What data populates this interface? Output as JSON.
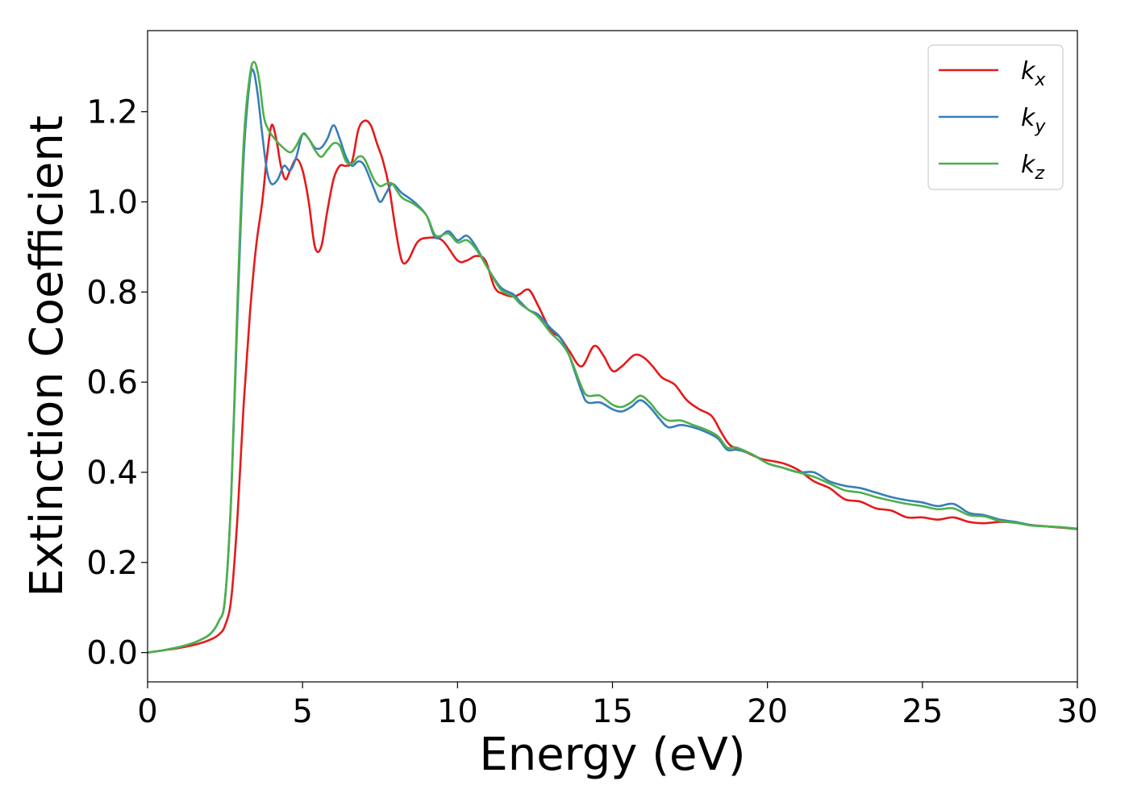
{
  "chart_data": {
    "type": "line",
    "title": "",
    "xlabel": "Energy (eV)",
    "ylabel": "Extinction Coefficient",
    "xlim": [
      0,
      30
    ],
    "ylim": [
      -0.065,
      1.38
    ],
    "xticks": [
      0,
      5,
      10,
      15,
      20,
      25,
      30
    ],
    "xtick_labels": [
      "0",
      "5",
      "10",
      "15",
      "20",
      "25",
      "30"
    ],
    "yticks": [
      0.0,
      0.2,
      0.4,
      0.6,
      0.8,
      1.0,
      1.2
    ],
    "ytick_labels": [
      "0.0",
      "0.2",
      "0.4",
      "0.6",
      "0.8",
      "1.0",
      "1.2"
    ],
    "grid": false,
    "legend_position": "top-right",
    "series": [
      {
        "name": "k",
        "subscript": "x",
        "color": "#e41a1c",
        "points": [
          [
            0,
            0.0
          ],
          [
            0.5,
            0.005
          ],
          [
            1.0,
            0.01
          ],
          [
            1.5,
            0.017
          ],
          [
            2.0,
            0.028
          ],
          [
            2.3,
            0.04
          ],
          [
            2.5,
            0.06
          ],
          [
            2.7,
            0.12
          ],
          [
            2.9,
            0.3
          ],
          [
            3.1,
            0.55
          ],
          [
            3.3,
            0.75
          ],
          [
            3.5,
            0.9
          ],
          [
            3.7,
            1.0
          ],
          [
            3.85,
            1.1
          ],
          [
            4.0,
            1.17
          ],
          [
            4.15,
            1.14
          ],
          [
            4.3,
            1.08
          ],
          [
            4.45,
            1.05
          ],
          [
            4.6,
            1.07
          ],
          [
            4.8,
            1.095
          ],
          [
            5.0,
            1.07
          ],
          [
            5.2,
            1.0
          ],
          [
            5.4,
            0.9
          ],
          [
            5.6,
            0.9
          ],
          [
            5.8,
            0.98
          ],
          [
            6.0,
            1.05
          ],
          [
            6.2,
            1.08
          ],
          [
            6.4,
            1.08
          ],
          [
            6.6,
            1.09
          ],
          [
            6.8,
            1.16
          ],
          [
            7.0,
            1.18
          ],
          [
            7.2,
            1.17
          ],
          [
            7.4,
            1.13
          ],
          [
            7.6,
            1.09
          ],
          [
            7.8,
            1.03
          ],
          [
            8.0,
            0.94
          ],
          [
            8.2,
            0.87
          ],
          [
            8.4,
            0.87
          ],
          [
            8.7,
            0.91
          ],
          [
            9.0,
            0.92
          ],
          [
            9.5,
            0.915
          ],
          [
            10.0,
            0.87
          ],
          [
            10.3,
            0.87
          ],
          [
            10.6,
            0.88
          ],
          [
            10.9,
            0.87
          ],
          [
            11.2,
            0.81
          ],
          [
            11.5,
            0.795
          ],
          [
            11.8,
            0.79
          ],
          [
            12.0,
            0.795
          ],
          [
            12.3,
            0.805
          ],
          [
            12.6,
            0.77
          ],
          [
            13.0,
            0.715
          ],
          [
            13.3,
            0.7
          ],
          [
            13.6,
            0.67
          ],
          [
            14.0,
            0.635
          ],
          [
            14.4,
            0.68
          ],
          [
            14.7,
            0.66
          ],
          [
            15.0,
            0.625
          ],
          [
            15.3,
            0.635
          ],
          [
            15.7,
            0.66
          ],
          [
            16.0,
            0.655
          ],
          [
            16.3,
            0.635
          ],
          [
            16.6,
            0.61
          ],
          [
            17.0,
            0.595
          ],
          [
            17.4,
            0.56
          ],
          [
            17.8,
            0.54
          ],
          [
            18.2,
            0.525
          ],
          [
            18.5,
            0.49
          ],
          [
            18.8,
            0.46
          ],
          [
            19.3,
            0.445
          ],
          [
            19.8,
            0.43
          ],
          [
            20.5,
            0.42
          ],
          [
            21.0,
            0.405
          ],
          [
            21.5,
            0.38
          ],
          [
            22.0,
            0.365
          ],
          [
            22.5,
            0.34
          ],
          [
            23.0,
            0.335
          ],
          [
            23.5,
            0.32
          ],
          [
            24.0,
            0.315
          ],
          [
            24.5,
            0.3
          ],
          [
            25.0,
            0.3
          ],
          [
            25.5,
            0.295
          ],
          [
            26.0,
            0.3
          ],
          [
            26.5,
            0.29
          ],
          [
            27.0,
            0.287
          ],
          [
            27.5,
            0.29
          ],
          [
            28.0,
            0.288
          ],
          [
            28.5,
            0.283
          ],
          [
            29.0,
            0.28
          ],
          [
            29.5,
            0.277
          ],
          [
            30.0,
            0.274
          ]
        ]
      },
      {
        "name": "k",
        "subscript": "y",
        "color": "#377eb8",
        "points": [
          [
            0,
            0.0
          ],
          [
            0.5,
            0.005
          ],
          [
            1.0,
            0.012
          ],
          [
            1.5,
            0.022
          ],
          [
            2.0,
            0.04
          ],
          [
            2.3,
            0.07
          ],
          [
            2.5,
            0.12
          ],
          [
            2.7,
            0.35
          ],
          [
            2.9,
            0.75
          ],
          [
            3.1,
            1.1
          ],
          [
            3.3,
            1.27
          ],
          [
            3.42,
            1.29
          ],
          [
            3.55,
            1.24
          ],
          [
            3.7,
            1.15
          ],
          [
            3.85,
            1.07
          ],
          [
            4.0,
            1.04
          ],
          [
            4.2,
            1.05
          ],
          [
            4.4,
            1.08
          ],
          [
            4.6,
            1.07
          ],
          [
            4.8,
            1.1
          ],
          [
            5.0,
            1.15
          ],
          [
            5.2,
            1.14
          ],
          [
            5.4,
            1.12
          ],
          [
            5.6,
            1.12
          ],
          [
            5.8,
            1.14
          ],
          [
            6.0,
            1.17
          ],
          [
            6.2,
            1.14
          ],
          [
            6.4,
            1.1
          ],
          [
            6.6,
            1.08
          ],
          [
            6.8,
            1.09
          ],
          [
            7.0,
            1.08
          ],
          [
            7.3,
            1.03
          ],
          [
            7.5,
            1.0
          ],
          [
            7.7,
            1.02
          ],
          [
            7.9,
            1.04
          ],
          [
            8.2,
            1.02
          ],
          [
            8.6,
            1.0
          ],
          [
            9.0,
            0.97
          ],
          [
            9.3,
            0.92
          ],
          [
            9.7,
            0.935
          ],
          [
            10.0,
            0.915
          ],
          [
            10.3,
            0.925
          ],
          [
            10.6,
            0.9
          ],
          [
            11.0,
            0.85
          ],
          [
            11.4,
            0.81
          ],
          [
            11.8,
            0.795
          ],
          [
            12.0,
            0.78
          ],
          [
            12.3,
            0.76
          ],
          [
            12.6,
            0.75
          ],
          [
            13.0,
            0.72
          ],
          [
            13.3,
            0.7
          ],
          [
            13.6,
            0.66
          ],
          [
            14.0,
            0.58
          ],
          [
            14.2,
            0.555
          ],
          [
            14.6,
            0.555
          ],
          [
            15.0,
            0.54
          ],
          [
            15.3,
            0.535
          ],
          [
            15.6,
            0.545
          ],
          [
            15.9,
            0.56
          ],
          [
            16.2,
            0.545
          ],
          [
            16.5,
            0.52
          ],
          [
            16.8,
            0.5
          ],
          [
            17.2,
            0.505
          ],
          [
            17.6,
            0.5
          ],
          [
            18.0,
            0.49
          ],
          [
            18.4,
            0.475
          ],
          [
            18.7,
            0.45
          ],
          [
            19.0,
            0.45
          ],
          [
            19.5,
            0.44
          ],
          [
            20.0,
            0.42
          ],
          [
            20.5,
            0.41
          ],
          [
            21.0,
            0.4
          ],
          [
            21.5,
            0.4
          ],
          [
            22.0,
            0.38
          ],
          [
            22.5,
            0.37
          ],
          [
            23.0,
            0.365
          ],
          [
            23.5,
            0.355
          ],
          [
            24.0,
            0.345
          ],
          [
            24.5,
            0.338
          ],
          [
            25.0,
            0.333
          ],
          [
            25.5,
            0.325
          ],
          [
            26.0,
            0.33
          ],
          [
            26.5,
            0.31
          ],
          [
            27.0,
            0.305
          ],
          [
            27.5,
            0.295
          ],
          [
            28.0,
            0.29
          ],
          [
            28.5,
            0.283
          ],
          [
            29.0,
            0.28
          ],
          [
            29.5,
            0.278
          ],
          [
            30.0,
            0.274
          ]
        ]
      },
      {
        "name": "k",
        "subscript": "z",
        "color": "#4daf4a",
        "points": [
          [
            0,
            0.0
          ],
          [
            0.5,
            0.005
          ],
          [
            1.0,
            0.012
          ],
          [
            1.5,
            0.022
          ],
          [
            2.0,
            0.04
          ],
          [
            2.3,
            0.07
          ],
          [
            2.5,
            0.12
          ],
          [
            2.7,
            0.35
          ],
          [
            2.9,
            0.78
          ],
          [
            3.1,
            1.13
          ],
          [
            3.3,
            1.28
          ],
          [
            3.45,
            1.31
          ],
          [
            3.6,
            1.27
          ],
          [
            3.75,
            1.19
          ],
          [
            3.9,
            1.16
          ],
          [
            4.1,
            1.14
          ],
          [
            4.3,
            1.125
          ],
          [
            4.6,
            1.11
          ],
          [
            4.8,
            1.125
          ],
          [
            5.0,
            1.15
          ],
          [
            5.2,
            1.14
          ],
          [
            5.4,
            1.115
          ],
          [
            5.6,
            1.1
          ],
          [
            5.8,
            1.115
          ],
          [
            6.0,
            1.13
          ],
          [
            6.2,
            1.125
          ],
          [
            6.4,
            1.09
          ],
          [
            6.6,
            1.085
          ],
          [
            6.8,
            1.1
          ],
          [
            7.0,
            1.095
          ],
          [
            7.3,
            1.05
          ],
          [
            7.5,
            1.035
          ],
          [
            7.7,
            1.04
          ],
          [
            7.9,
            1.04
          ],
          [
            8.2,
            1.01
          ],
          [
            8.6,
            0.995
          ],
          [
            9.0,
            0.97
          ],
          [
            9.3,
            0.925
          ],
          [
            9.7,
            0.93
          ],
          [
            10.0,
            0.91
          ],
          [
            10.3,
            0.915
          ],
          [
            10.6,
            0.895
          ],
          [
            11.0,
            0.85
          ],
          [
            11.4,
            0.805
          ],
          [
            11.8,
            0.79
          ],
          [
            12.0,
            0.775
          ],
          [
            12.3,
            0.76
          ],
          [
            12.6,
            0.745
          ],
          [
            13.0,
            0.71
          ],
          [
            13.3,
            0.69
          ],
          [
            13.6,
            0.66
          ],
          [
            14.0,
            0.59
          ],
          [
            14.2,
            0.57
          ],
          [
            14.6,
            0.57
          ],
          [
            15.0,
            0.55
          ],
          [
            15.3,
            0.545
          ],
          [
            15.6,
            0.555
          ],
          [
            15.9,
            0.57
          ],
          [
            16.2,
            0.555
          ],
          [
            16.5,
            0.53
          ],
          [
            16.8,
            0.515
          ],
          [
            17.2,
            0.515
          ],
          [
            17.6,
            0.505
          ],
          [
            18.0,
            0.495
          ],
          [
            18.4,
            0.48
          ],
          [
            18.7,
            0.455
          ],
          [
            19.0,
            0.455
          ],
          [
            19.5,
            0.44
          ],
          [
            20.0,
            0.42
          ],
          [
            20.5,
            0.41
          ],
          [
            21.0,
            0.4
          ],
          [
            21.5,
            0.39
          ],
          [
            22.0,
            0.375
          ],
          [
            22.5,
            0.36
          ],
          [
            23.0,
            0.355
          ],
          [
            23.5,
            0.345
          ],
          [
            24.0,
            0.337
          ],
          [
            24.5,
            0.33
          ],
          [
            25.0,
            0.325
          ],
          [
            25.5,
            0.318
          ],
          [
            26.0,
            0.32
          ],
          [
            26.5,
            0.305
          ],
          [
            27.0,
            0.302
          ],
          [
            27.5,
            0.292
          ],
          [
            28.0,
            0.288
          ],
          [
            28.5,
            0.282
          ],
          [
            29.0,
            0.28
          ],
          [
            29.5,
            0.278
          ],
          [
            30.0,
            0.275
          ]
        ]
      }
    ]
  }
}
